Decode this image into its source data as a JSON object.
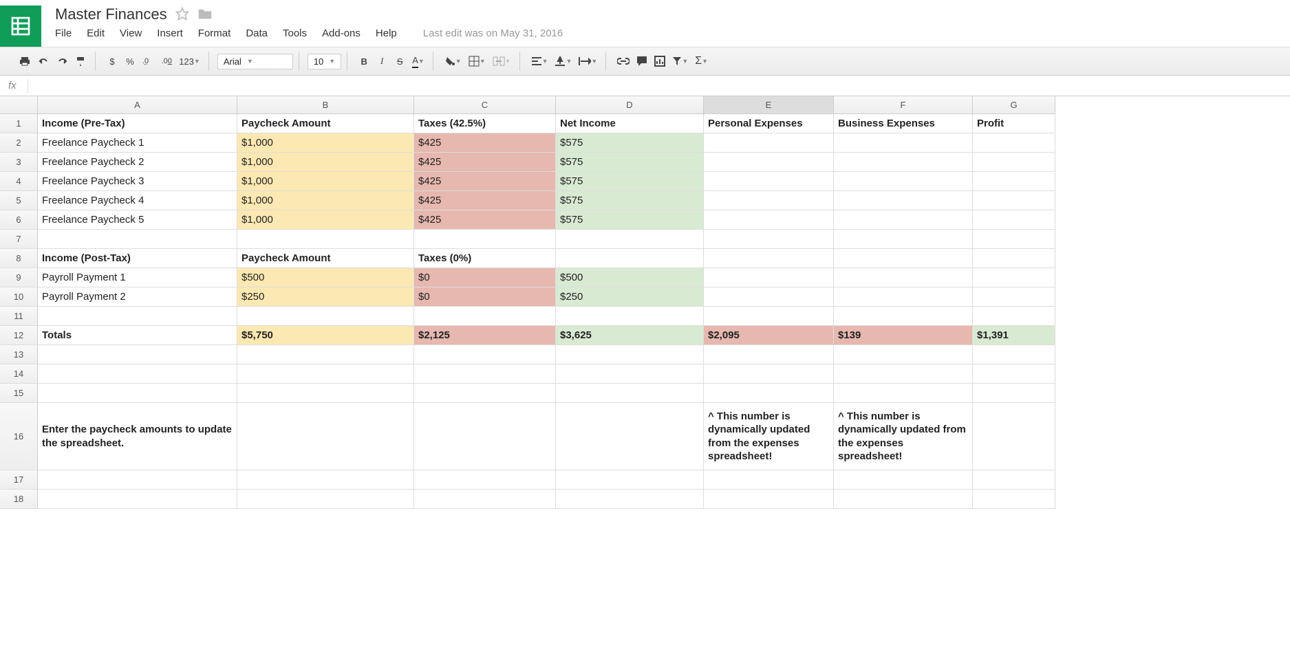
{
  "doc": {
    "title": "Master Finances",
    "last_edit": "Last edit was on May 31, 2016"
  },
  "menus": [
    "File",
    "Edit",
    "View",
    "Insert",
    "Format",
    "Data",
    "Tools",
    "Add-ons",
    "Help"
  ],
  "toolbar": {
    "font": "Arial",
    "size": "10",
    "currency": "$",
    "percent": "%",
    "dec_dec": ".0",
    "dec_inc": ".00",
    "more_formats": "123",
    "bold": "B",
    "italic": "I",
    "strike": "S",
    "sigma": "Σ"
  },
  "formula_bar": {
    "fx": "fx",
    "value": ""
  },
  "columns": [
    "",
    "A",
    "B",
    "C",
    "D",
    "E",
    "F",
    "G"
  ],
  "selected_col": "E",
  "rows": [
    {
      "n": "1",
      "h": "h-normal",
      "cells": [
        {
          "v": "Income (Pre-Tax)",
          "cls": "bold"
        },
        {
          "v": "Paycheck Amount",
          "cls": "bold"
        },
        {
          "v": "Taxes (42.5%)",
          "cls": "bold"
        },
        {
          "v": "Net Income",
          "cls": "bold"
        },
        {
          "v": "Personal Expenses",
          "cls": "bold"
        },
        {
          "v": "Business Expenses",
          "cls": "bold"
        },
        {
          "v": "Profit",
          "cls": "bold"
        }
      ]
    },
    {
      "n": "2",
      "h": "h-normal",
      "cells": [
        {
          "v": "Freelance Paycheck 1"
        },
        {
          "v": "$1,000",
          "cls": "fill-yellow"
        },
        {
          "v": "$425",
          "cls": "fill-red"
        },
        {
          "v": "$575",
          "cls": "fill-green"
        },
        {
          "v": ""
        },
        {
          "v": ""
        },
        {
          "v": ""
        }
      ]
    },
    {
      "n": "3",
      "h": "h-normal",
      "cells": [
        {
          "v": "Freelance Paycheck 2"
        },
        {
          "v": "$1,000",
          "cls": "fill-yellow"
        },
        {
          "v": "$425",
          "cls": "fill-red"
        },
        {
          "v": "$575",
          "cls": "fill-green"
        },
        {
          "v": ""
        },
        {
          "v": ""
        },
        {
          "v": ""
        }
      ]
    },
    {
      "n": "4",
      "h": "h-normal",
      "cells": [
        {
          "v": "Freelance Paycheck 3"
        },
        {
          "v": "$1,000",
          "cls": "fill-yellow"
        },
        {
          "v": "$425",
          "cls": "fill-red"
        },
        {
          "v": "$575",
          "cls": "fill-green"
        },
        {
          "v": ""
        },
        {
          "v": ""
        },
        {
          "v": ""
        }
      ]
    },
    {
      "n": "5",
      "h": "h-normal",
      "cells": [
        {
          "v": "Freelance Paycheck 4"
        },
        {
          "v": "$1,000",
          "cls": "fill-yellow"
        },
        {
          "v": "$425",
          "cls": "fill-red"
        },
        {
          "v": "$575",
          "cls": "fill-green"
        },
        {
          "v": ""
        },
        {
          "v": ""
        },
        {
          "v": ""
        }
      ]
    },
    {
      "n": "6",
      "h": "h-normal",
      "cells": [
        {
          "v": "Freelance Paycheck 5"
        },
        {
          "v": "$1,000",
          "cls": "fill-yellow"
        },
        {
          "v": "$425",
          "cls": "fill-red"
        },
        {
          "v": "$575",
          "cls": "fill-green"
        },
        {
          "v": ""
        },
        {
          "v": ""
        },
        {
          "v": ""
        }
      ]
    },
    {
      "n": "7",
      "h": "h-normal",
      "cells": [
        {
          "v": ""
        },
        {
          "v": ""
        },
        {
          "v": ""
        },
        {
          "v": ""
        },
        {
          "v": ""
        },
        {
          "v": ""
        },
        {
          "v": ""
        }
      ]
    },
    {
      "n": "8",
      "h": "h-normal",
      "cells": [
        {
          "v": "Income (Post-Tax)",
          "cls": "bold"
        },
        {
          "v": "Paycheck Amount",
          "cls": "bold"
        },
        {
          "v": "Taxes (0%)",
          "cls": "bold"
        },
        {
          "v": ""
        },
        {
          "v": ""
        },
        {
          "v": ""
        },
        {
          "v": ""
        }
      ]
    },
    {
      "n": "9",
      "h": "h-normal",
      "cells": [
        {
          "v": "Payroll Payment 1"
        },
        {
          "v": "$500",
          "cls": "fill-yellow"
        },
        {
          "v": "$0",
          "cls": "fill-red"
        },
        {
          "v": "$500",
          "cls": "fill-green"
        },
        {
          "v": ""
        },
        {
          "v": ""
        },
        {
          "v": ""
        }
      ]
    },
    {
      "n": "10",
      "h": "h-normal",
      "cells": [
        {
          "v": "Payroll Payment 2"
        },
        {
          "v": "$250",
          "cls": "fill-yellow"
        },
        {
          "v": "$0",
          "cls": "fill-red"
        },
        {
          "v": "$250",
          "cls": "fill-green"
        },
        {
          "v": ""
        },
        {
          "v": ""
        },
        {
          "v": ""
        }
      ]
    },
    {
      "n": "11",
      "h": "h-normal",
      "cells": [
        {
          "v": ""
        },
        {
          "v": ""
        },
        {
          "v": ""
        },
        {
          "v": ""
        },
        {
          "v": ""
        },
        {
          "v": ""
        },
        {
          "v": ""
        }
      ]
    },
    {
      "n": "12",
      "h": "h-normal",
      "cells": [
        {
          "v": "Totals",
          "cls": "bold"
        },
        {
          "v": "$5,750",
          "cls": "bold fill-yellow"
        },
        {
          "v": "$2,125",
          "cls": "bold fill-red"
        },
        {
          "v": "$3,625",
          "cls": "bold fill-green"
        },
        {
          "v": "$2,095",
          "cls": "bold fill-red"
        },
        {
          "v": "$139",
          "cls": "bold fill-red"
        },
        {
          "v": "$1,391",
          "cls": "bold fill-green"
        }
      ]
    },
    {
      "n": "13",
      "h": "h-normal",
      "cells": [
        {
          "v": ""
        },
        {
          "v": ""
        },
        {
          "v": ""
        },
        {
          "v": ""
        },
        {
          "v": ""
        },
        {
          "v": ""
        },
        {
          "v": ""
        }
      ]
    },
    {
      "n": "14",
      "h": "h-normal",
      "cells": [
        {
          "v": ""
        },
        {
          "v": ""
        },
        {
          "v": ""
        },
        {
          "v": ""
        },
        {
          "v": ""
        },
        {
          "v": ""
        },
        {
          "v": ""
        }
      ]
    },
    {
      "n": "15",
      "h": "h-normal",
      "cells": [
        {
          "v": ""
        },
        {
          "v": ""
        },
        {
          "v": ""
        },
        {
          "v": ""
        },
        {
          "v": ""
        },
        {
          "v": ""
        },
        {
          "v": ""
        }
      ]
    },
    {
      "n": "16",
      "h": "h-tall",
      "cells": [
        {
          "v": "Enter the paycheck amounts to update the spreadsheet.",
          "cls": "bold wrap"
        },
        {
          "v": ""
        },
        {
          "v": ""
        },
        {
          "v": ""
        },
        {
          "v": "^ This number is dynamically updated from the expenses spreadsheet!",
          "cls": "bold wrap"
        },
        {
          "v": "^ This number is dynamically updated from the expenses spreadsheet!",
          "cls": "bold wrap"
        },
        {
          "v": ""
        }
      ]
    },
    {
      "n": "17",
      "h": "h-normal",
      "cells": [
        {
          "v": ""
        },
        {
          "v": ""
        },
        {
          "v": ""
        },
        {
          "v": ""
        },
        {
          "v": ""
        },
        {
          "v": ""
        },
        {
          "v": ""
        }
      ]
    },
    {
      "n": "18",
      "h": "h-normal",
      "cells": [
        {
          "v": ""
        },
        {
          "v": ""
        },
        {
          "v": ""
        },
        {
          "v": ""
        },
        {
          "v": ""
        },
        {
          "v": ""
        },
        {
          "v": ""
        }
      ]
    }
  ]
}
